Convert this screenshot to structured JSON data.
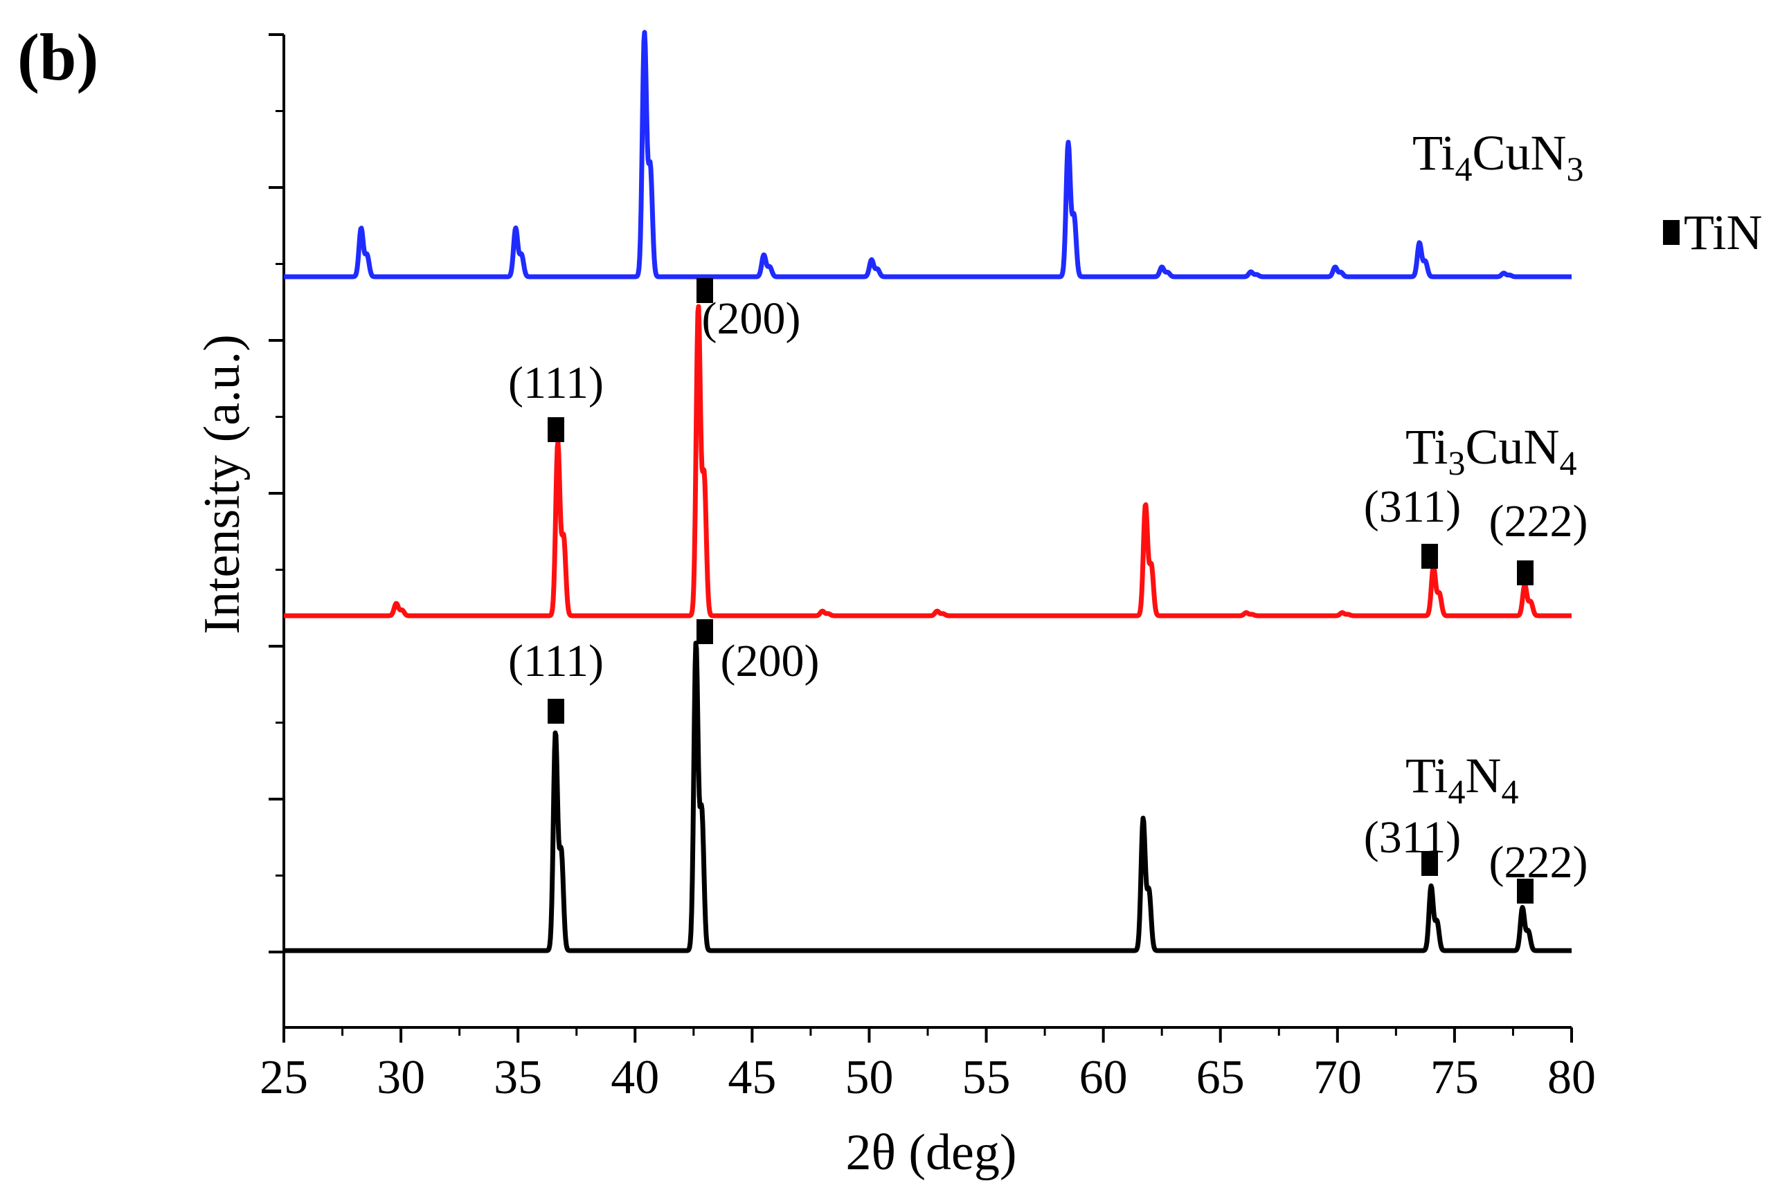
{
  "chart_data": {
    "type": "line",
    "panel_label": "(b)",
    "xlabel": "2θ (deg)",
    "ylabel": "Intensity (a.u.)",
    "xlim": [
      25,
      80
    ],
    "x_ticks": [
      25,
      30,
      35,
      40,
      45,
      50,
      55,
      60,
      65,
      70,
      75,
      80
    ],
    "y_tick_labels": false,
    "grid": false,
    "legend": {
      "marker": "filled-square",
      "label": "TiN",
      "placement": "right"
    },
    "marker_color": "#000000",
    "series": [
      {
        "name": "Ti4CuN3",
        "label_main": "Ti",
        "label_sub1": "4",
        "label_mid": "CuN",
        "label_sub2": "3",
        "color": "#1f2bff",
        "baseline": 0.0,
        "peaks": [
          {
            "two_theta": 28.3,
            "intensity": 0.2
          },
          {
            "two_theta": 34.9,
            "intensity": 0.2
          },
          {
            "two_theta": 40.4,
            "intensity": 1.0
          },
          {
            "two_theta": 45.5,
            "intensity": 0.09
          },
          {
            "two_theta": 50.1,
            "intensity": 0.07
          },
          {
            "two_theta": 58.5,
            "intensity": 0.55
          },
          {
            "two_theta": 62.5,
            "intensity": 0.04
          },
          {
            "two_theta": 66.3,
            "intensity": 0.02
          },
          {
            "two_theta": 69.9,
            "intensity": 0.04
          },
          {
            "two_theta": 73.5,
            "intensity": 0.14
          },
          {
            "two_theta": 77.1,
            "intensity": 0.015
          }
        ]
      },
      {
        "name": "Ti3CuN4",
        "label_main": "Ti",
        "label_sub1": "3",
        "label_mid": "CuN",
        "label_sub2": "4",
        "color": "#ff1010",
        "baseline": 0.0,
        "peaks": [
          {
            "two_theta": 29.8,
            "intensity": 0.04
          },
          {
            "two_theta": 36.7,
            "intensity": 0.56
          },
          {
            "two_theta": 42.7,
            "intensity": 1.0
          },
          {
            "two_theta": 48.0,
            "intensity": 0.015
          },
          {
            "two_theta": 52.9,
            "intensity": 0.015
          },
          {
            "two_theta": 61.8,
            "intensity": 0.36
          },
          {
            "two_theta": 66.1,
            "intensity": 0.01
          },
          {
            "two_theta": 70.2,
            "intensity": 0.01
          },
          {
            "two_theta": 74.1,
            "intensity": 0.16
          },
          {
            "two_theta": 78.0,
            "intensity": 0.1
          }
        ],
        "tin_markers": [
          {
            "two_theta": 36.7,
            "hkl": "(111)"
          },
          {
            "two_theta": 43.0,
            "hkl": "(200)"
          },
          {
            "two_theta": 74.1,
            "hkl": "(311)"
          },
          {
            "two_theta": 78.0,
            "hkl": "(222)"
          }
        ]
      },
      {
        "name": "Ti4N4",
        "label_main": "Ti",
        "label_sub1": "4",
        "label_mid": "N",
        "label_sub2": "4",
        "color": "#000000",
        "baseline": 0.0,
        "peaks": [
          {
            "two_theta": 36.6,
            "intensity": 0.71
          },
          {
            "two_theta": 42.6,
            "intensity": 1.0
          },
          {
            "two_theta": 61.7,
            "intensity": 0.43
          },
          {
            "two_theta": 74.0,
            "intensity": 0.21
          },
          {
            "two_theta": 77.9,
            "intensity": 0.14
          }
        ],
        "tin_markers": [
          {
            "two_theta": 36.6,
            "hkl": "(111)"
          },
          {
            "two_theta": 43.0,
            "hkl": "(200)"
          },
          {
            "two_theta": 74.0,
            "hkl": "(311)"
          },
          {
            "two_theta": 78.0,
            "hkl": "(222)"
          }
        ]
      }
    ]
  }
}
